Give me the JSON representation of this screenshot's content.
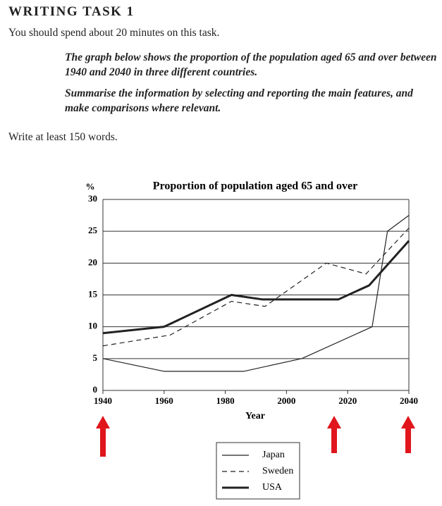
{
  "header": {
    "title": "WRITING TASK 1",
    "instruction": "You should spend about 20 minutes on this task."
  },
  "prompt": [
    "The graph below shows the proportion of the population aged 65 and over between 1940 and 2040 in three different countries.",
    "Summarise the information by selecting and reporting the main features, and make comparisons where relevant."
  ],
  "footer": "Write at least 150 words.",
  "chart_data": {
    "type": "line",
    "title": "Proportion of population aged 65 and over",
    "y_label": "%",
    "x_label": "Year",
    "xlim": [
      1940,
      2040
    ],
    "xticks": [
      1940,
      1960,
      1980,
      2000,
      2020,
      2040
    ],
    "ylim": [
      0,
      30
    ],
    "yticks": [
      0,
      5,
      10,
      15,
      20,
      25,
      30
    ],
    "grid": true,
    "series": [
      {
        "name": "Japan",
        "color": "#222",
        "style": "solid",
        "x": [
          1940,
          1960,
          1986,
          2005,
          2028,
          2033,
          2040
        ],
        "values": [
          5,
          3,
          3,
          5,
          10,
          25,
          27.5
        ]
      },
      {
        "name": "Sweden",
        "color": "#222",
        "style": "dashed",
        "x": [
          1940,
          1962,
          1982,
          1993,
          2013,
          2026,
          2040
        ],
        "values": [
          7,
          8.7,
          14,
          13.2,
          20,
          18.3,
          25.5
        ]
      },
      {
        "name": "USA",
        "color": "#222",
        "style": "thick",
        "x": [
          1940,
          1960,
          1982,
          1992,
          2017,
          2027,
          2040
        ],
        "values": [
          9,
          10,
          15,
          14.3,
          14.3,
          16.5,
          23.5
        ]
      }
    ]
  }
}
